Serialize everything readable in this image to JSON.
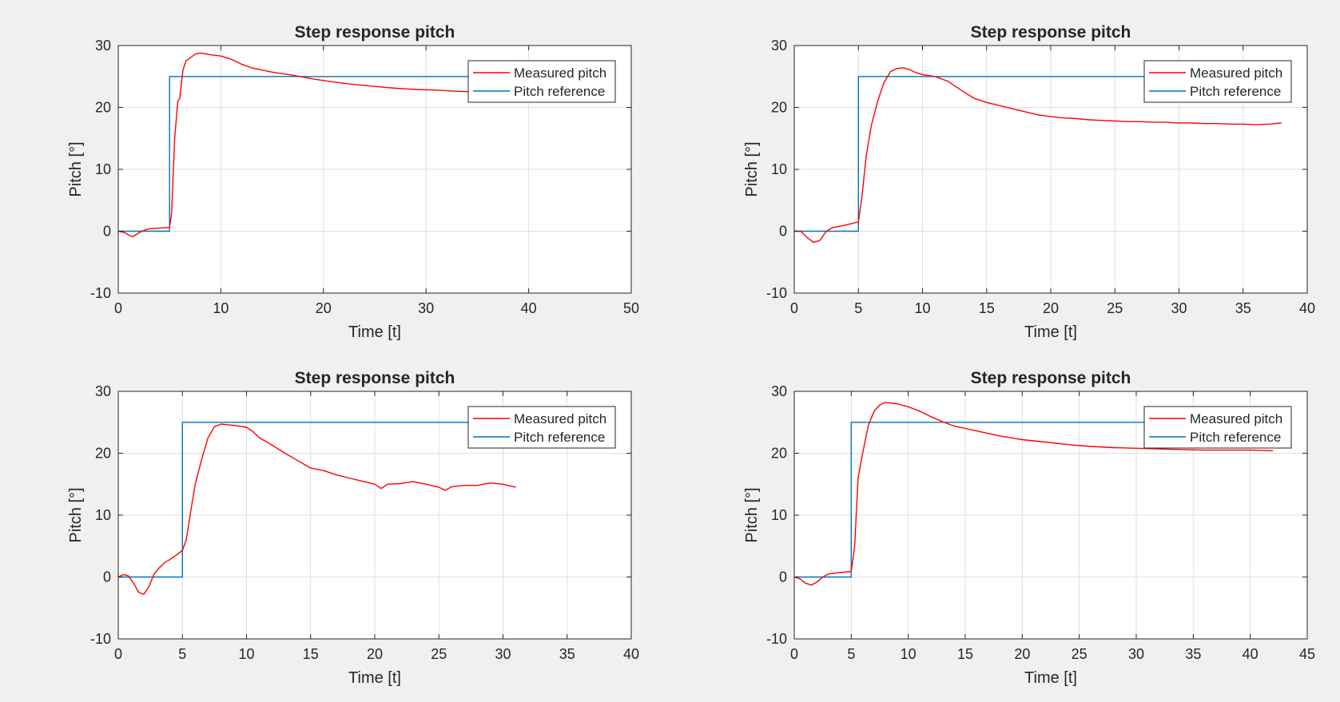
{
  "colors": {
    "background": "#f0f0f0",
    "axes_background": "#ffffff",
    "grid": "#dfdfdf",
    "axis": "#262626",
    "measured": "#ff0000",
    "reference": "#0072bd"
  },
  "chart_data": [
    {
      "type": "line",
      "title": "Step response pitch",
      "xlabel": "Time [t]",
      "ylabel": "Pitch [°]",
      "xlim": [
        0,
        50
      ],
      "ylim": [
        -10,
        30
      ],
      "xticks": [
        0,
        10,
        20,
        30,
        40,
        50
      ],
      "yticks": [
        -10,
        0,
        10,
        20,
        30
      ],
      "grid": true,
      "legend_position": "top-right",
      "series": [
        {
          "name": "Measured pitch",
          "color": "#ff0000",
          "x": [
            0,
            0.6,
            1.0,
            1.4,
            1.8,
            2.3,
            3,
            4,
            5,
            5.2,
            5.5,
            5.8,
            6.0,
            6.3,
            6.6,
            7,
            7.5,
            8,
            9,
            10,
            11,
            12,
            13,
            15,
            17,
            19,
            21,
            23,
            25,
            27,
            29,
            31,
            33,
            35
          ],
          "y": [
            0,
            -0.2,
            -0.6,
            -0.9,
            -0.5,
            0,
            0.4,
            0.5,
            0.6,
            3,
            15,
            21,
            21.5,
            26,
            27.5,
            28,
            28.6,
            28.8,
            28.5,
            28.3,
            27.8,
            27,
            26.4,
            25.7,
            25.2,
            24.6,
            24.1,
            23.7,
            23.4,
            23.1,
            22.9,
            22.8,
            22.6,
            22.5
          ]
        },
        {
          "name": "Pitch reference",
          "color": "#0072bd",
          "x": [
            0,
            5,
            5,
            35
          ],
          "y": [
            0,
            0,
            25,
            25
          ]
        }
      ]
    },
    {
      "type": "line",
      "title": "Step response pitch",
      "xlabel": "Time [t]",
      "ylabel": "Pitch [°]",
      "xlim": [
        0,
        40
      ],
      "ylim": [
        -10,
        30
      ],
      "xticks": [
        0,
        5,
        10,
        15,
        20,
        25,
        30,
        35,
        40
      ],
      "yticks": [
        -10,
        0,
        10,
        20,
        30
      ],
      "grid": true,
      "legend_position": "top-right",
      "series": [
        {
          "name": "Measured pitch",
          "color": "#ff0000",
          "x": [
            0,
            0.5,
            1,
            1.5,
            2,
            2.5,
            3,
            4,
            5,
            5.3,
            5.6,
            6,
            6.5,
            7,
            7.5,
            8,
            8.5,
            9,
            9.5,
            10,
            11,
            12,
            13,
            14,
            15,
            16,
            17,
            18,
            19,
            20,
            21,
            22,
            23,
            24,
            25,
            26,
            27,
            28,
            29,
            30,
            31,
            32,
            33,
            34,
            35,
            36,
            37,
            38
          ],
          "y": [
            0,
            0,
            -1,
            -1.8,
            -1.5,
            0,
            0.6,
            1,
            1.5,
            6,
            12,
            17,
            21,
            24,
            25.8,
            26.3,
            26.4,
            26.1,
            25.6,
            25.3,
            25,
            24.2,
            22.8,
            21.5,
            20.8,
            20.3,
            19.8,
            19.3,
            18.8,
            18.5,
            18.3,
            18.2,
            18,
            17.9,
            17.8,
            17.7,
            17.7,
            17.6,
            17.6,
            17.5,
            17.5,
            17.4,
            17.4,
            17.3,
            17.3,
            17.2,
            17.3,
            17.5
          ]
        },
        {
          "name": "Pitch reference",
          "color": "#0072bd",
          "x": [
            0,
            5,
            5,
            38
          ],
          "y": [
            0,
            0,
            25,
            25
          ]
        }
      ]
    },
    {
      "type": "line",
      "title": "Step response pitch",
      "xlabel": "Time [t]",
      "ylabel": "Pitch [°]",
      "xlim": [
        0,
        40
      ],
      "ylim": [
        -10,
        30
      ],
      "xticks": [
        0,
        5,
        10,
        15,
        20,
        25,
        30,
        35,
        40
      ],
      "yticks": [
        -10,
        0,
        10,
        20,
        30
      ],
      "grid": true,
      "legend_position": "top-right",
      "series": [
        {
          "name": "Measured pitch",
          "color": "#ff0000",
          "x": [
            0,
            0.4,
            0.8,
            1.2,
            1.6,
            2.0,
            2.4,
            2.8,
            3.2,
            3.6,
            4,
            4.5,
            5,
            5.3,
            5.6,
            6,
            6.5,
            7,
            7.5,
            8,
            9,
            10,
            10.5,
            11,
            12,
            13,
            14,
            15,
            16,
            17,
            18,
            19,
            20,
            20.5,
            21,
            22,
            23,
            24,
            25,
            25.5,
            26,
            27,
            28,
            29,
            30,
            31
          ],
          "y": [
            0,
            0.4,
            0.2,
            -1,
            -2.5,
            -2.8,
            -1.5,
            0.5,
            1.5,
            2.3,
            2.8,
            3.5,
            4.3,
            6,
            10,
            15,
            19,
            22.5,
            24.3,
            24.7,
            24.5,
            24.2,
            23.5,
            22.5,
            21.3,
            20,
            18.8,
            17.6,
            17.2,
            16.5,
            16,
            15.5,
            15,
            14.3,
            15,
            15.1,
            15.4,
            15,
            14.5,
            14,
            14.6,
            14.8,
            14.8,
            15.2,
            15,
            14.5
          ]
        },
        {
          "name": "Pitch reference",
          "color": "#0072bd",
          "x": [
            0,
            5,
            5,
            31
          ],
          "y": [
            0,
            0,
            25,
            25
          ]
        }
      ]
    },
    {
      "type": "line",
      "title": "Step response pitch",
      "xlabel": "Time [t]",
      "ylabel": "Pitch [°]",
      "xlim": [
        0,
        45
      ],
      "ylim": [
        -10,
        30
      ],
      "xticks": [
        0,
        5,
        10,
        15,
        20,
        25,
        30,
        35,
        40,
        45
      ],
      "yticks": [
        -10,
        0,
        10,
        20,
        30
      ],
      "grid": true,
      "legend_position": "top-right",
      "series": [
        {
          "name": "Measured pitch",
          "color": "#ff0000",
          "x": [
            0,
            0.5,
            1,
            1.5,
            2,
            2.5,
            3,
            4,
            5,
            5.3,
            5.6,
            6,
            6.5,
            7,
            7.5,
            8,
            9,
            10,
            11,
            12,
            13,
            14,
            15,
            16,
            17,
            18,
            19,
            20,
            22,
            24,
            26,
            28,
            30,
            32,
            34,
            36,
            38,
            40,
            42
          ],
          "y": [
            0,
            -0.3,
            -1,
            -1.3,
            -0.8,
            0,
            0.5,
            0.7,
            0.9,
            5,
            16,
            20,
            24.5,
            26.8,
            27.8,
            28.2,
            28,
            27.5,
            26.8,
            25.9,
            25.1,
            24.4,
            24,
            23.6,
            23.2,
            22.8,
            22.5,
            22.2,
            21.8,
            21.4,
            21.1,
            20.9,
            20.8,
            20.7,
            20.6,
            20.5,
            20.5,
            20.5,
            20.4
          ]
        },
        {
          "name": "Pitch reference",
          "color": "#0072bd",
          "x": [
            0,
            5,
            5,
            42
          ],
          "y": [
            0,
            0,
            25,
            25
          ]
        }
      ]
    }
  ]
}
